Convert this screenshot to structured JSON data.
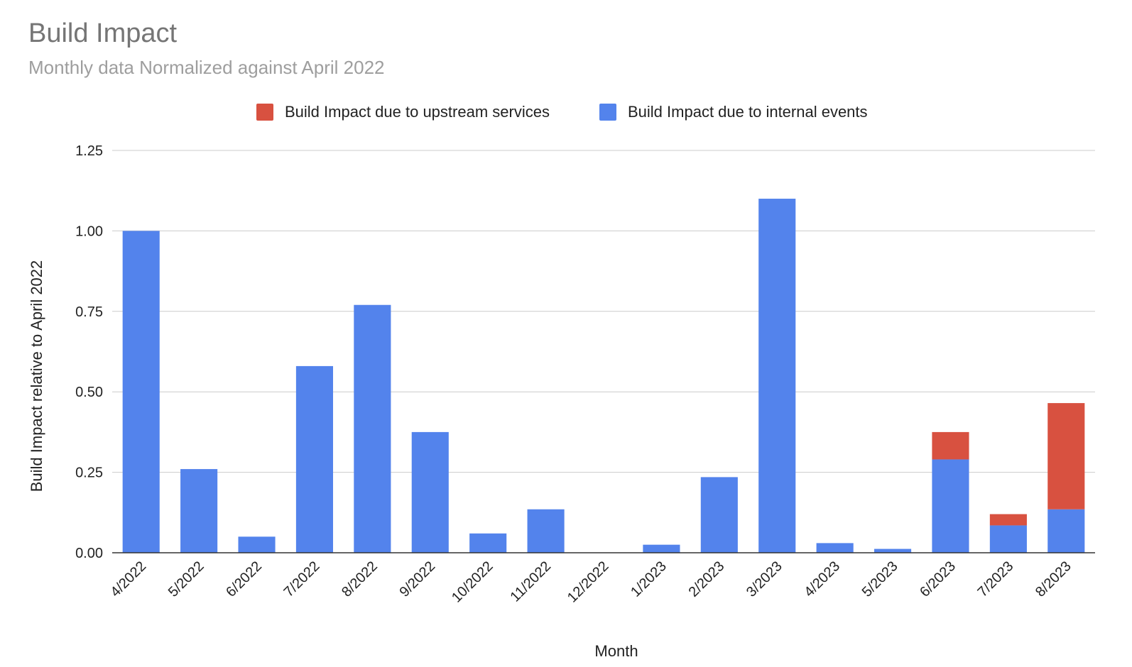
{
  "chart_data": {
    "type": "bar",
    "stacked": true,
    "title": "Build Impact",
    "subtitle": "Monthly data Normalized against April 2022",
    "xlabel": "Month",
    "ylabel": "Build Impact relative to April 2022",
    "ylim": [
      0,
      1.25
    ],
    "yticks": [
      "0.00",
      "0.25",
      "0.50",
      "0.75",
      "1.00",
      "1.25"
    ],
    "grid": true,
    "legend_position": "top",
    "categories": [
      "4/2022",
      "5/2022",
      "6/2022",
      "7/2022",
      "8/2022",
      "9/2022",
      "10/2022",
      "11/2022",
      "12/2022",
      "1/2023",
      "2/2023",
      "3/2023",
      "4/2023",
      "5/2023",
      "6/2023",
      "7/2023",
      "8/2023"
    ],
    "series": [
      {
        "name": "Build Impact due to internal events",
        "color": "#5383EC",
        "values": [
          1.0,
          0.26,
          0.05,
          0.58,
          0.77,
          0.375,
          0.06,
          0.135,
          0.0,
          0.025,
          0.235,
          1.1,
          0.03,
          0.012,
          0.29,
          0.085,
          0.135
        ]
      },
      {
        "name": "Build Impact due to upstream services",
        "color": "#D85140",
        "values": [
          0,
          0,
          0,
          0,
          0,
          0,
          0,
          0,
          0,
          0,
          0,
          0,
          0,
          0,
          0.085,
          0.035,
          0.33
        ]
      }
    ],
    "legend": [
      {
        "label": "Build Impact due to upstream services",
        "color": "#D85140"
      },
      {
        "label": "Build Impact due to internal events",
        "color": "#5383EC"
      }
    ]
  }
}
